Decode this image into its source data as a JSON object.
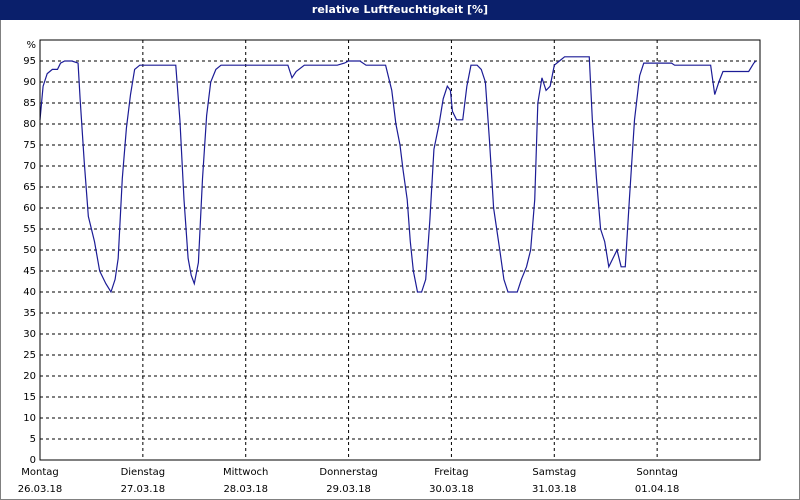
{
  "chart_data": {
    "type": "line",
    "title": "relative Luftfeuchtigkeit [%]",
    "ylabel": "%",
    "color": "#1c1c96",
    "grid": true,
    "xlim": [
      0,
      7
    ],
    "xticks": [
      {
        "value": 0,
        "label": "26.03.18",
        "weekday": "Montag"
      },
      {
        "value": 1,
        "label": "27.03.18",
        "weekday": "Dienstag"
      },
      {
        "value": 2,
        "label": "28.03.18",
        "weekday": "Mittwoch"
      },
      {
        "value": 3,
        "label": "29.03.18",
        "weekday": "Donnerstag"
      },
      {
        "value": 4,
        "label": "30.03.18",
        "weekday": "Freitag"
      },
      {
        "value": 5,
        "label": "31.03.18",
        "weekday": "Samstag"
      },
      {
        "value": 6,
        "label": "01.04.18",
        "weekday": "Sonntag"
      }
    ],
    "ylim": [
      0,
      100
    ],
    "yticks": [
      0,
      5,
      10,
      15,
      20,
      25,
      30,
      35,
      40,
      45,
      50,
      55,
      60,
      65,
      70,
      75,
      80,
      85,
      90,
      95
    ],
    "x": [
      0,
      0.03,
      0.07,
      0.12,
      0.17,
      0.2,
      0.24,
      0.31,
      0.37,
      0.39,
      0.43,
      0.47,
      0.53,
      0.58,
      0.64,
      0.69,
      0.73,
      0.76,
      0.8,
      0.84,
      0.88,
      0.92,
      0.97,
      1.0,
      1.07,
      1.17,
      1.26,
      1.32,
      1.36,
      1.4,
      1.44,
      1.47,
      1.5,
      1.54,
      1.58,
      1.62,
      1.66,
      1.71,
      1.76,
      2.0,
      2.14,
      2.41,
      2.45,
      2.49,
      2.57,
      2.72,
      2.82,
      2.89,
      2.96,
      3.0,
      3.11,
      3.17,
      3.22,
      3.36,
      3.42,
      3.46,
      3.5,
      3.53,
      3.57,
      3.6,
      3.63,
      3.67,
      3.71,
      3.75,
      3.79,
      3.83,
      3.88,
      3.92,
      3.96,
      3.99,
      4.01,
      4.05,
      4.08,
      4.11,
      4.15,
      4.19,
      4.25,
      4.29,
      4.33,
      4.37,
      4.41,
      4.47,
      4.51,
      4.55,
      4.6,
      4.64,
      4.68,
      4.73,
      4.77,
      4.81,
      4.84,
      4.88,
      4.92,
      4.96,
      5.0,
      5.05,
      5.1,
      5.19,
      5.34,
      5.37,
      5.41,
      5.45,
      5.49,
      5.53,
      5.57,
      5.61,
      5.65,
      5.69,
      5.73,
      5.78,
      5.83,
      5.87,
      5.97,
      6.14,
      6.17,
      6.46,
      6.52,
      6.56,
      6.6,
      6.64,
      6.75,
      6.89,
      6.94,
      6.96
    ],
    "values": [
      81,
      89,
      92,
      93,
      93,
      94.5,
      95,
      95,
      94.5,
      86,
      71,
      58,
      52,
      45,
      42,
      40,
      43,
      48,
      67,
      79,
      87,
      93,
      94,
      94,
      94,
      94,
      94,
      94,
      81,
      62,
      48,
      44,
      42,
      47,
      67,
      82,
      90,
      93,
      94,
      94,
      94,
      94,
      91,
      92.5,
      94,
      94,
      94,
      94,
      94.5,
      95,
      95,
      94,
      94,
      94,
      88,
      80,
      75,
      69,
      62,
      52,
      45,
      40,
      40,
      43,
      57,
      74,
      80,
      86,
      89,
      88,
      83,
      81,
      81,
      81,
      89,
      94,
      94,
      93,
      90,
      76,
      60,
      50,
      43,
      40,
      40,
      40,
      43,
      46,
      50,
      62,
      85,
      91,
      88,
      89,
      94,
      95,
      96,
      96,
      96,
      81,
      67,
      55,
      52,
      46,
      48,
      50,
      46,
      46,
      62,
      81,
      91.5,
      94.5,
      94.5,
      94.5,
      94,
      94,
      94,
      87,
      90,
      92.5,
      92.5,
      92.5,
      94.5,
      95
    ]
  }
}
